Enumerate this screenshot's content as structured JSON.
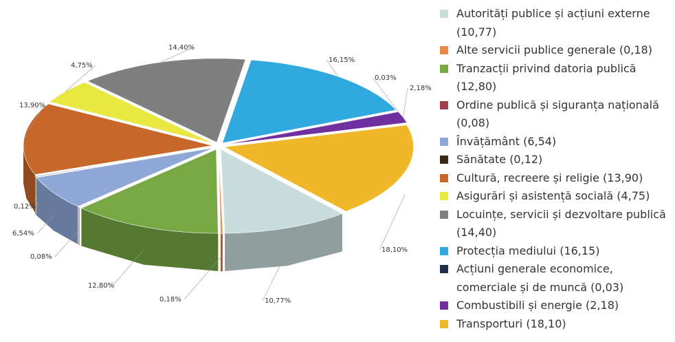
{
  "chart_data": {
    "type": "pie",
    "categories": [
      "Autorități publice și acțiuni externe (10,77)",
      "Alte servicii publice generale (0,18)",
      "Tranzacții privind datoria publică (12,80)",
      "Ordine publică și siguranța națională (0,08)",
      "Învățământ (6,54)",
      "Sănătate (0,12)",
      "Cultură, recreere și religie (13,90)",
      "Asigurări și asistență socială (4,75)",
      "Locuințe, servicii și dezvoltare publică (14,40)",
      "Protecția mediului (16,15)",
      "Acțiuni generale economice, comerciale și de muncă (0,03)",
      "Combustibili și energie (2,18)",
      "Transporturi (18,10)"
    ],
    "values": [
      10.77,
      0.18,
      12.8,
      0.08,
      6.54,
      0.12,
      13.9,
      4.75,
      14.4,
      16.15,
      0.03,
      2.18,
      18.1
    ],
    "value_labels": [
      "10,77%",
      "0,18%",
      "12,80%",
      "0,08%",
      "6,54%",
      "0,12%",
      "13,90%",
      "4,75%",
      "14,40%",
      "16,15%",
      "0,03%",
      "2,18%",
      "18,10%"
    ],
    "colors": [
      "#c9dcdc",
      "#e8884a",
      "#77a843",
      "#a0404f",
      "#8fa8d8",
      "#3a2a1a",
      "#c8672a",
      "#e8e840",
      "#7f7f7f",
      "#30a8e0",
      "#1f2f4a",
      "#7030a0",
      "#f0b828"
    ],
    "legend": "right"
  }
}
